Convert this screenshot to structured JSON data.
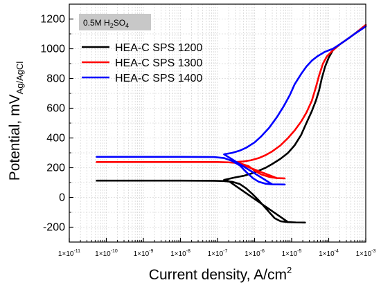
{
  "chart_data": {
    "type": "line",
    "annotation": {
      "base": "0.5M H",
      "sub1": "2",
      "mid": "SO",
      "sub2": "4"
    },
    "xlabel": {
      "base": "Current density, A/cm",
      "sup": "2"
    },
    "ylabel": {
      "base": "Potential, mV",
      "sub": "Ag/AgCl"
    },
    "x_scale": "log",
    "xlim": [
      1e-11,
      0.001
    ],
    "ylim": [
      -300,
      1300
    ],
    "x_ticks": [
      {
        "value": 1e-11,
        "label": "1×10",
        "exp": "-11"
      },
      {
        "value": 1e-10,
        "label": "1×10",
        "exp": "-10"
      },
      {
        "value": 1e-09,
        "label": "1×10",
        "exp": "-9"
      },
      {
        "value": 1e-08,
        "label": "1×10",
        "exp": "-8"
      },
      {
        "value": 1e-07,
        "label": "1×10",
        "exp": "-7"
      },
      {
        "value": 1e-06,
        "label": "1×10",
        "exp": "-6"
      },
      {
        "value": 1e-05,
        "label": "1×10",
        "exp": "-5"
      },
      {
        "value": 0.0001,
        "label": "1×10",
        "exp": "-4"
      },
      {
        "value": 0.001,
        "label": "1×10",
        "exp": "-3"
      }
    ],
    "y_ticks": [
      -200,
      0,
      200,
      400,
      600,
      800,
      1000,
      1200
    ],
    "grid": true,
    "legend_position": "top-left",
    "series": [
      {
        "name": "HEA-C SPS 1200",
        "color": "#000000",
        "points": [
          [
            5.5e-11,
            113
          ],
          [
            1e-09,
            113
          ],
          [
            1e-08,
            113
          ],
          [
            8e-08,
            112
          ],
          [
            1.5e-07,
            110
          ],
          [
            2.5e-07,
            105
          ],
          [
            4e-07,
            90
          ],
          [
            6e-07,
            60
          ],
          [
            9e-07,
            20
          ],
          [
            1.3e-06,
            -20
          ],
          [
            1.8e-06,
            -60
          ],
          [
            2.5e-06,
            -100
          ],
          [
            3.5e-06,
            -140
          ],
          [
            5e-06,
            -160
          ],
          [
            8e-06,
            -166
          ],
          [
            1.3e-05,
            -168
          ],
          [
            2.3e-05,
            -169
          ],
          [
            2.3e-05,
            -169
          ],
          [
            1.3e-05,
            -168
          ],
          [
            8e-06,
            -166
          ],
          [
            2e-07,
            110
          ],
          [
            1.5e-07,
            118
          ],
          [
            2e-07,
            125
          ],
          [
            3e-07,
            135
          ],
          [
            5e-07,
            145
          ],
          [
            8e-07,
            160
          ],
          [
            1.3e-06,
            180
          ],
          [
            2e-06,
            200
          ],
          [
            3e-06,
            225
          ],
          [
            5e-06,
            260
          ],
          [
            8e-06,
            300
          ],
          [
            1.2e-05,
            350
          ],
          [
            1.8e-05,
            420
          ],
          [
            2.5e-05,
            500
          ],
          [
            3.5e-05,
            580
          ],
          [
            4.5e-05,
            650
          ],
          [
            5.5e-05,
            720
          ],
          [
            6.5e-05,
            800
          ],
          [
            8e-05,
            880
          ],
          [
            0.0001,
            940
          ],
          [
            0.00013,
            990
          ],
          [
            0.0002,
            1030
          ],
          [
            0.0003,
            1060
          ],
          [
            0.0005,
            1100
          ],
          [
            0.001,
            1160
          ]
        ]
      },
      {
        "name": "HEA-C SPS 1300",
        "color": "#ff0000",
        "points": [
          [
            5.5e-11,
            238
          ],
          [
            1e-09,
            238
          ],
          [
            1e-08,
            238
          ],
          [
            1e-07,
            238
          ],
          [
            2e-07,
            236
          ],
          [
            4e-07,
            230
          ],
          [
            7e-07,
            210
          ],
          [
            1e-06,
            180
          ],
          [
            1.5e-06,
            155
          ],
          [
            2.5e-06,
            138
          ],
          [
            4e-06,
            130
          ],
          [
            6.5e-06,
            128
          ],
          [
            6.5e-06,
            128
          ],
          [
            4e-06,
            130
          ],
          [
            3e-07,
            238
          ],
          [
            5e-07,
            242
          ],
          [
            8e-07,
            250
          ],
          [
            1.3e-06,
            265
          ],
          [
            2e-06,
            285
          ],
          [
            3e-06,
            310
          ],
          [
            5e-06,
            350
          ],
          [
            8e-06,
            400
          ],
          [
            1.2e-05,
            450
          ],
          [
            1.8e-05,
            510
          ],
          [
            2.5e-05,
            570
          ],
          [
            3.5e-05,
            650
          ],
          [
            4.5e-05,
            740
          ],
          [
            5.5e-05,
            820
          ],
          [
            7e-05,
            900
          ],
          [
            9e-05,
            950
          ],
          [
            0.00013,
            990
          ],
          [
            0.0002,
            1030
          ],
          [
            0.0003,
            1060
          ],
          [
            0.0005,
            1100
          ],
          [
            0.001,
            1160
          ]
        ]
      },
      {
        "name": "HEA-C SPS 1400",
        "color": "#0000ff",
        "points": [
          [
            5.5e-11,
            273
          ],
          [
            1e-09,
            273
          ],
          [
            1e-08,
            273
          ],
          [
            8e-08,
            272
          ],
          [
            1.5e-07,
            265
          ],
          [
            2.5e-07,
            245
          ],
          [
            4e-07,
            215
          ],
          [
            6e-07,
            170
          ],
          [
            9e-07,
            130
          ],
          [
            1.3e-06,
            105
          ],
          [
            2e-06,
            92
          ],
          [
            3e-06,
            88
          ],
          [
            6.5e-06,
            87
          ],
          [
            6.5e-06,
            87
          ],
          [
            3e-06,
            88
          ],
          [
            1.5e-07,
            290
          ],
          [
            2.5e-07,
            300
          ],
          [
            4e-07,
            315
          ],
          [
            6e-07,
            335
          ],
          [
            1e-06,
            370
          ],
          [
            1.5e-06,
            410
          ],
          [
            2.5e-06,
            470
          ],
          [
            4e-06,
            540
          ],
          [
            6e-06,
            610
          ],
          [
            9e-06,
            690
          ],
          [
            1.2e-05,
            760
          ],
          [
            1.8e-05,
            830
          ],
          [
            2.5e-05,
            880
          ],
          [
            3.5e-05,
            920
          ],
          [
            5e-05,
            950
          ],
          [
            8e-05,
            980
          ],
          [
            0.00013,
            1000
          ],
          [
            0.0002,
            1030
          ],
          [
            0.0003,
            1060
          ],
          [
            0.0005,
            1100
          ],
          [
            0.001,
            1150
          ]
        ]
      }
    ]
  }
}
